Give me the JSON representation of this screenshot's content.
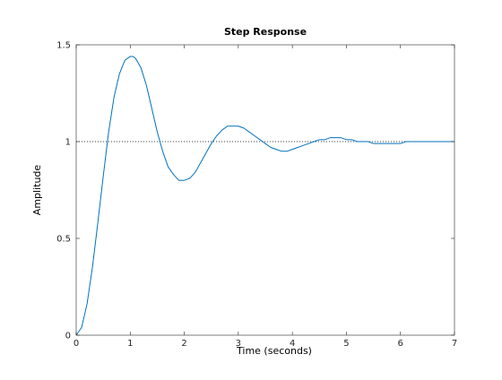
{
  "chart_data": {
    "type": "line",
    "title": "Step Response",
    "xlabel": "Time (seconds)",
    "ylabel": "Amplitude",
    "xlim": [
      0,
      7
    ],
    "ylim": [
      0,
      1.5
    ],
    "xticks": [
      0,
      1,
      2,
      3,
      4,
      5,
      6,
      7
    ],
    "yticks": [
      0,
      0.5,
      1,
      1.5
    ],
    "xtick_labels": [
      "0",
      "1",
      "2",
      "3",
      "4",
      "5",
      "6",
      "7"
    ],
    "ytick_labels": [
      "0",
      "0.5",
      "1",
      "1.5"
    ],
    "grid": false,
    "reference_line": {
      "y": 1,
      "style": "dotted",
      "color": "#000000"
    },
    "series": [
      {
        "color": "#0072bd",
        "x": [
          0,
          0.1,
          0.2,
          0.3,
          0.4,
          0.5,
          0.6,
          0.7,
          0.8,
          0.9,
          1.0,
          1.05,
          1.1,
          1.2,
          1.3,
          1.4,
          1.5,
          1.6,
          1.7,
          1.8,
          1.9,
          2.0,
          2.1,
          2.2,
          2.3,
          2.4,
          2.5,
          2.6,
          2.7,
          2.8,
          2.9,
          3.0,
          3.1,
          3.2,
          3.3,
          3.4,
          3.5,
          3.6,
          3.7,
          3.8,
          3.9,
          4.0,
          4.1,
          4.2,
          4.3,
          4.4,
          4.5,
          4.6,
          4.7,
          4.8,
          4.9,
          5.0,
          5.1,
          5.2,
          5.3,
          5.4,
          5.5,
          5.6,
          5.7,
          5.8,
          5.9,
          6.0,
          6.1,
          6.2,
          6.3,
          6.4,
          6.5,
          6.6,
          6.7,
          6.8,
          6.9,
          7.0
        ],
        "y": [
          0,
          0.04,
          0.16,
          0.35,
          0.58,
          0.82,
          1.05,
          1.23,
          1.35,
          1.42,
          1.44,
          1.44,
          1.43,
          1.38,
          1.29,
          1.17,
          1.05,
          0.95,
          0.87,
          0.83,
          0.8,
          0.8,
          0.81,
          0.84,
          0.89,
          0.94,
          0.99,
          1.03,
          1.06,
          1.08,
          1.08,
          1.08,
          1.07,
          1.05,
          1.03,
          1.01,
          0.99,
          0.97,
          0.96,
          0.95,
          0.95,
          0.96,
          0.97,
          0.98,
          0.99,
          1.0,
          1.01,
          1.01,
          1.02,
          1.02,
          1.02,
          1.01,
          1.01,
          1.0,
          1.0,
          1.0,
          0.99,
          0.99,
          0.99,
          0.99,
          0.99,
          0.99,
          1.0,
          1.0,
          1.0,
          1.0,
          1.0,
          1.0,
          1.0,
          1.0,
          1.0,
          1.0
        ]
      }
    ]
  }
}
